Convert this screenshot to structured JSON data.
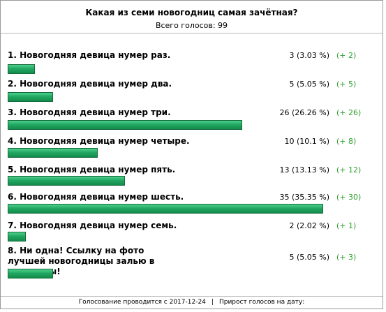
{
  "poll": {
    "title": "Какая из семи новогодниц самая зачётная?",
    "total_label": "Всего голосов:",
    "total_value": "99",
    "bar_color": "#22a862",
    "delta_color": "#2e9e2e",
    "options": [
      {
        "label": "1. Новогодняя девица нумер раз.",
        "count": "3 (3.03 %)",
        "delta": "(+ 2)",
        "share": 0.0303
      },
      {
        "label": "2. Новогодняя девица нумер два.",
        "count": "5 (5.05 %)",
        "delta": "(+ 5)",
        "share": 0.0505
      },
      {
        "label": "3. Новогодняя девица нумер три.",
        "count": "26 (26.26 %)",
        "delta": "(+ 26)",
        "share": 0.2626
      },
      {
        "label": "4. Новогодняя девица нумер четыре.",
        "count": "10 (10.1 %)",
        "delta": "(+ 8)",
        "share": 0.101
      },
      {
        "label": "5. Новогодняя девица нумер пять.",
        "count": "13 (13.13 %)",
        "delta": "(+ 12)",
        "share": 0.1313
      },
      {
        "label": "6. Новогодняя девица нумер шесть.",
        "count": "35 (35.35 %)",
        "delta": "(+ 30)",
        "share": 0.3535
      },
      {
        "label": "7. Новогодняя девица нумер семь.",
        "count": "2 (2.02 %)",
        "delta": "(+ 1)",
        "share": 0.0202
      },
      {
        "label": "8. Ни одна! Ссылку на фото лучшей новогодницы залью в комменты!",
        "count": "5 (5.05 %)",
        "delta": "(+ 3)",
        "share": 0.0505
      }
    ],
    "footer": {
      "started": "Голосование проводится с 2017-12-24",
      "separator": "|",
      "growth": "Прирост голосов на дату:"
    }
  }
}
